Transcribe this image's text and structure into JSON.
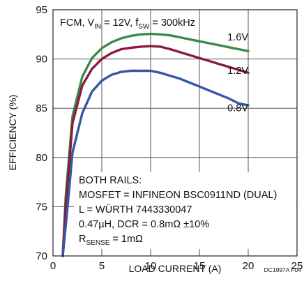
{
  "chart_data": {
    "type": "line",
    "title": "",
    "xlabel": "LOAD CURRENT (A)",
    "ylabel": "EFFICIENCY (%)",
    "xlim": [
      0,
      25
    ],
    "ylim": [
      70,
      95
    ],
    "x_ticks": [
      "0",
      "5",
      "10",
      "15",
      "20",
      "25"
    ],
    "y_ticks": [
      "70",
      "75",
      "80",
      "85",
      "90",
      "95"
    ],
    "grid": true,
    "conditions": {
      "line1_prefix": "FCM, V",
      "line1_sub1": "IN",
      "line1_mid": " = 12V, f",
      "line1_sub2": "SW",
      "line1_suffix": " = 300kHz"
    },
    "notes": {
      "line1": "BOTH RAILS:",
      "line2": "MOSFET = INFINEON BSC0911ND (DUAL)",
      "line3": "L = WÜRTH 7443330047",
      "line4": "0.47µH, DCR = 0.8mΩ ±10%",
      "line5_prefix": "R",
      "line5_sub": "SENSE",
      "line5_suffix": " = 1mΩ"
    },
    "figure_code": "DC1997A F04",
    "series": [
      {
        "name": "1.6V",
        "color": "#3b8a4b",
        "points": [
          [
            1,
            70
          ],
          [
            1.3,
            76
          ],
          [
            2,
            84.2
          ],
          [
            3,
            88.2
          ],
          [
            4,
            90.1
          ],
          [
            5,
            91.1
          ],
          [
            6,
            91.7
          ],
          [
            7,
            92.1
          ],
          [
            8,
            92.35
          ],
          [
            9,
            92.5
          ],
          [
            10,
            92.55
          ],
          [
            11,
            92.5
          ],
          [
            12,
            92.4
          ],
          [
            13,
            92.2
          ],
          [
            14,
            92
          ],
          [
            15,
            91.8
          ],
          [
            16,
            91.6
          ],
          [
            17,
            91.4
          ],
          [
            18,
            91.2
          ],
          [
            19,
            91.0
          ],
          [
            20,
            90.8
          ]
        ]
      },
      {
        "name": "1.2V",
        "color": "#8b1a3c",
        "points": [
          [
            1,
            70
          ],
          [
            1.3,
            75
          ],
          [
            2,
            83.5
          ],
          [
            3,
            87.3
          ],
          [
            4,
            89
          ],
          [
            5,
            90
          ],
          [
            6,
            90.6
          ],
          [
            7,
            91
          ],
          [
            8,
            91.15
          ],
          [
            9,
            91.25
          ],
          [
            10,
            91.3
          ],
          [
            11,
            91.25
          ],
          [
            12,
            91
          ],
          [
            13,
            90.7
          ],
          [
            14,
            90.4
          ],
          [
            15,
            90.1
          ],
          [
            16,
            89.8
          ],
          [
            17,
            89.5
          ],
          [
            18,
            89.2
          ],
          [
            19,
            88.9
          ],
          [
            20,
            88.6
          ]
        ]
      },
      {
        "name": "0.8V",
        "color": "#3656a6",
        "points": [
          [
            1,
            70
          ],
          [
            1.4,
            74
          ],
          [
            2,
            80.5
          ],
          [
            3,
            84.5
          ],
          [
            4,
            86.7
          ],
          [
            5,
            87.8
          ],
          [
            6,
            88.4
          ],
          [
            7,
            88.7
          ],
          [
            8,
            88.8
          ],
          [
            9,
            88.8
          ],
          [
            10,
            88.8
          ],
          [
            11,
            88.6
          ],
          [
            12,
            88.3
          ],
          [
            13,
            88
          ],
          [
            14,
            87.6
          ],
          [
            15,
            87.2
          ],
          [
            16,
            86.8
          ],
          [
            17,
            86.4
          ],
          [
            18,
            86
          ],
          [
            19,
            85.5
          ],
          [
            20,
            85.3
          ]
        ]
      }
    ],
    "series_label_positions": [
      [
        20,
        91.9
      ],
      [
        20,
        88.5
      ],
      [
        20,
        84.7
      ]
    ]
  }
}
